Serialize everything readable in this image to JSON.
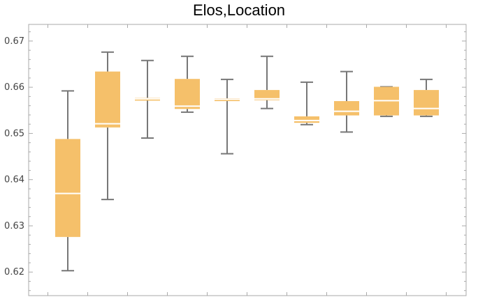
{
  "chart_data": {
    "type": "box",
    "title": "Elos,Location",
    "xlabel": "",
    "ylabel": "",
    "ylim": [
      0.6149,
      0.6736
    ],
    "y_ticks": [
      0.62,
      0.63,
      0.64,
      0.65,
      0.66,
      0.67
    ],
    "y_tick_labels": [
      "0.62",
      "0.63",
      "0.64",
      "0.65",
      "0.66",
      "0.67"
    ],
    "box_color": "#f5c06a",
    "median_color": "#ffffff",
    "whisker_color": "#777777",
    "frame_color": "#aaaaaa",
    "gridlines": false,
    "boxes": [
      {
        "min": 0.6203,
        "q1": 0.6276,
        "median": 0.637,
        "q3": 0.6488,
        "max": 0.6592
      },
      {
        "min": 0.6357,
        "q1": 0.6513,
        "median": 0.6521,
        "q3": 0.6634,
        "max": 0.6676
      },
      {
        "min": 0.649,
        "q1": 0.6572,
        "median": 0.6575,
        "q3": 0.6577,
        "max": 0.6658
      },
      {
        "min": 0.6546,
        "q1": 0.6553,
        "median": 0.6559,
        "q3": 0.6618,
        "max": 0.6667
      },
      {
        "min": 0.6456,
        "q1": 0.657,
        "median": 0.6574,
        "q3": 0.6576,
        "max": 0.6617
      },
      {
        "min": 0.6554,
        "q1": 0.6572,
        "median": 0.6575,
        "q3": 0.6594,
        "max": 0.6667
      },
      {
        "min": 0.6519,
        "q1": 0.6523,
        "median": 0.6528,
        "q3": 0.6537,
        "max": 0.6611
      },
      {
        "min": 0.6503,
        "q1": 0.6539,
        "median": 0.6548,
        "q3": 0.657,
        "max": 0.6634
      },
      {
        "min": 0.6537,
        "q1": 0.6539,
        "median": 0.6571,
        "q3": 0.6601,
        "max": 0.6601
      },
      {
        "min": 0.6537,
        "q1": 0.6539,
        "median": 0.6554,
        "q3": 0.6594,
        "max": 0.6617
      }
    ]
  }
}
